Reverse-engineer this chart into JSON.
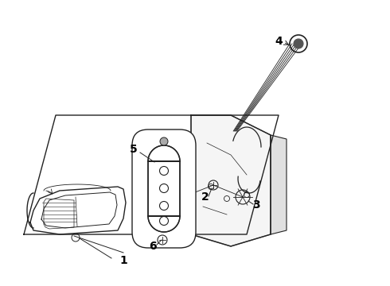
{
  "background_color": "#ffffff",
  "line_color": "#222222",
  "label_color": "#000000",
  "label_fontsize": 10,
  "label_fontweight": "bold",
  "fig_width": 4.9,
  "fig_height": 3.6,
  "dpi": 100,
  "xlim": [
    0,
    490
  ],
  "ylim": [
    0,
    360
  ]
}
